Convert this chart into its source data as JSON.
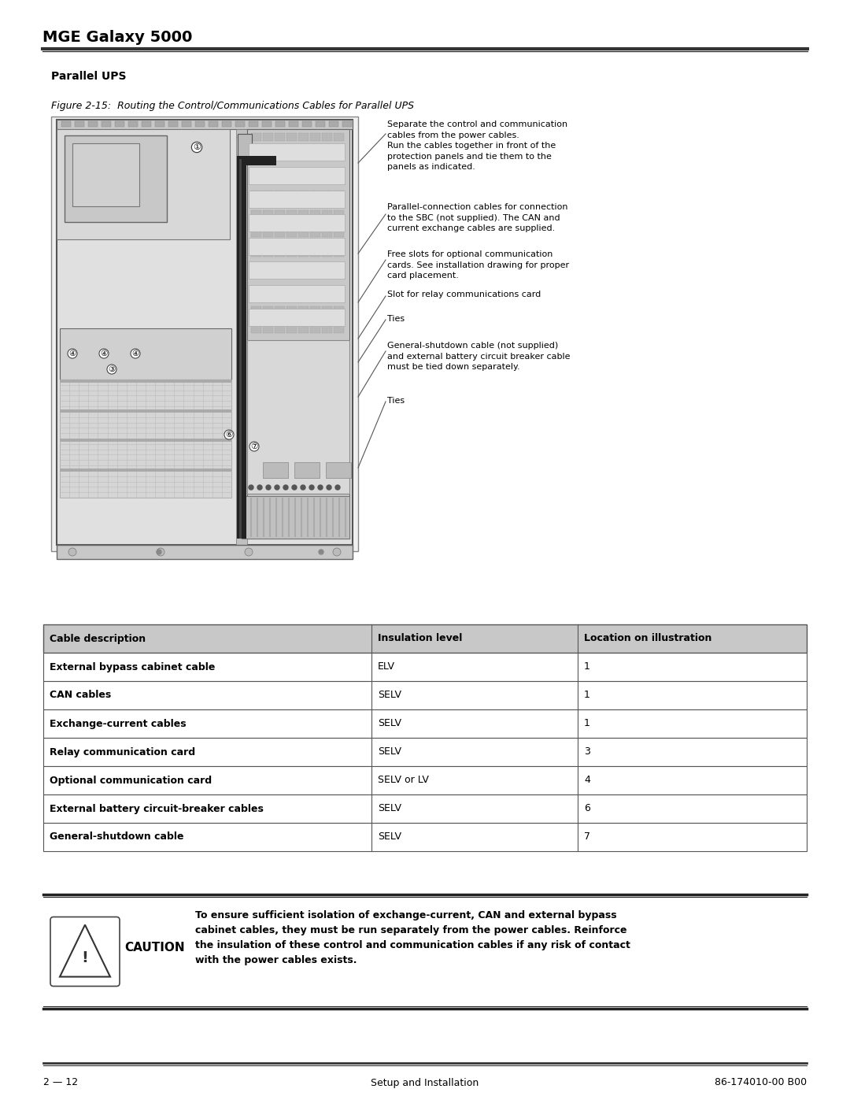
{
  "title": "MGE Galaxy 5000",
  "section_title": "Parallel UPS",
  "figure_caption": "Figure 2-15:  Routing the Control/Communications Cables for Parallel UPS",
  "table_headers": [
    "Cable description",
    "Insulation level",
    "Location on illustration"
  ],
  "table_rows": [
    [
      "External bypass cabinet cable",
      "ELV",
      "1"
    ],
    [
      "CAN cables",
      "SELV",
      "1"
    ],
    [
      "Exchange-current cables",
      "SELV",
      "1"
    ],
    [
      "Relay communication card",
      "SELV",
      "3"
    ],
    [
      "Optional communication card",
      "SELV or LV",
      "4"
    ],
    [
      "External battery circuit-breaker cables",
      "SELV",
      "6"
    ],
    [
      "General-shutdown cable",
      "SELV",
      "7"
    ]
  ],
  "caution_title": "CAUTION",
  "caution_text": "To ensure sufficient isolation of exchange-current, CAN and external bypass\ncabinet cables, they must be run separately from the power cables. Reinforce\nthe insulation of these control and communication cables if any risk of contact\nwith the power cables exists.",
  "footer_left": "2 — 12",
  "footer_center": "Setup and Installation",
  "footer_right": "86-174010-00 B00",
  "bg_color": "#ffffff",
  "ann_texts": [
    "Separate the control and communication\ncables from the power cables.\nRun the cables together in front of the\nprotection panels and tie them to the\npanels as indicated.",
    "Parallel-connection cables for connection\nto the SBC (not supplied). The CAN and\ncurrent exchange cables are supplied.",
    "Free slots for optional communication\ncards. See installation drawing for proper\ncard placement.",
    "Slot for relay communications card",
    "Ties",
    "General-shutdown cable (not supplied)\nand external battery circuit breaker cable\nmust be tied down separately.",
    "Ties"
  ]
}
